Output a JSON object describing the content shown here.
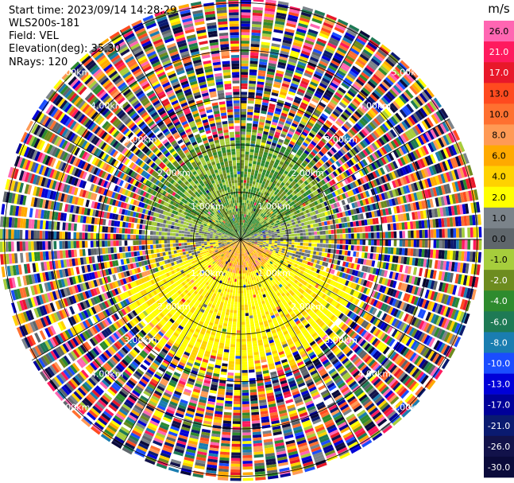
{
  "header": {
    "start_time": "Start time: 2023/09/14 14:28:29",
    "station": "WLS200s-181",
    "field": "Field: VEL",
    "elevation": "Elevation(deg): 35.30",
    "nrays": "NRays: 120"
  },
  "chart_data": {
    "type": "heatmap",
    "projection": "polar-ppi",
    "field": "VEL",
    "nrays": 120,
    "range_rings_km": [
      1,
      2,
      3,
      4,
      5
    ],
    "ring_labels": [
      "1.00km",
      "2.00km",
      "3.00km",
      "4.00km",
      "5.00km"
    ],
    "max_range_km": 5.1,
    "colorbar": {
      "unit": "m/s",
      "ticks": [
        "26.0",
        "21.0",
        "17.0",
        "13.0",
        "10.0",
        "8.0",
        "6.0",
        "4.0",
        "2.0",
        "1.0",
        "0.0",
        "-1.0",
        "-2.0",
        "-4.0",
        "-6.0",
        "-8.0",
        "-10.0",
        "-13.0",
        "-17.0",
        "-21.0",
        "-26.0",
        "-30.0"
      ],
      "colors": [
        "#ff66b2",
        "#ff1a5e",
        "#e8182a",
        "#ff4a1f",
        "#ff7030",
        "#ff9a55",
        "#ffaa00",
        "#ffd200",
        "#ffff00",
        "#7b838a",
        "#5f666b",
        "#a6cd3c",
        "#6d8c1f",
        "#2e8b2e",
        "#1e7a55",
        "#1a7db0",
        "#1a4dff",
        "#0000d8",
        "#000099",
        "#0a1a70",
        "#12124a",
        "#0a0a3a"
      ]
    },
    "velocity_pattern": {
      "north_near": "-2.0 to -6.0",
      "south_near": "2.0 to 6.0",
      "east_west_near": "0.0 to -1.0",
      "far_range": "noise"
    }
  }
}
